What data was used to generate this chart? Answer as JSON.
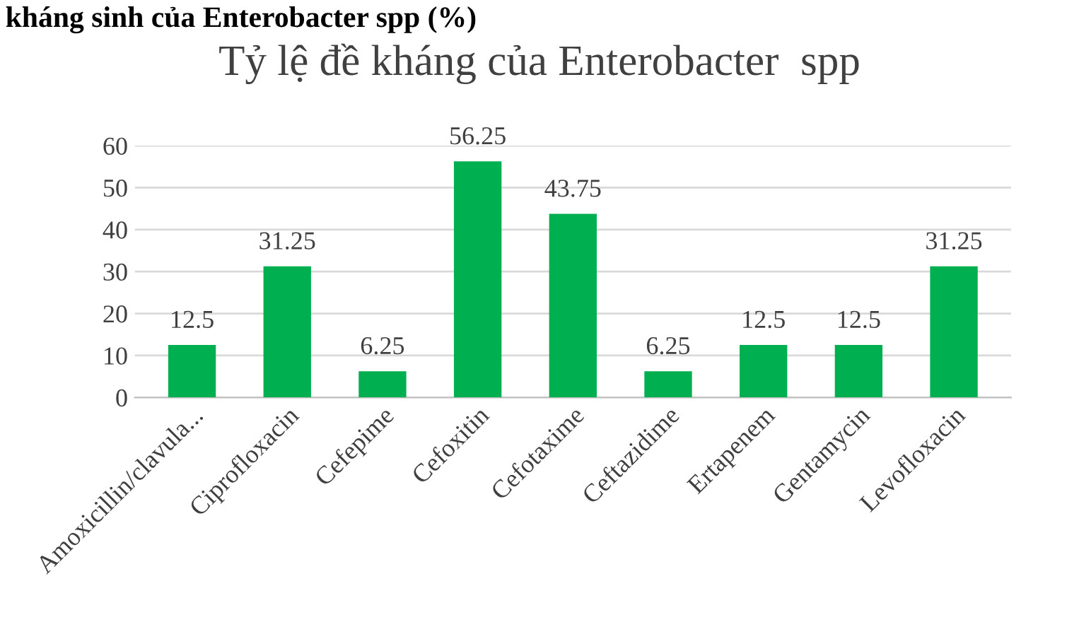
{
  "chart_data": {
    "type": "bar",
    "title": "Tỷ lệ đề kháng của Enterobacter  spp",
    "annotations": [
      "kháng sinh của Enterobacter spp (%)"
    ],
    "categories": [
      "Amoxicillin/clavula...",
      "Ciprofloxacin",
      "Cefepime",
      "Cefoxitin",
      "Cefotaxime",
      "Ceftazidime",
      "Ertapenem",
      "Gentamycin",
      "Levofloxacin"
    ],
    "values": [
      12.5,
      31.25,
      6.25,
      56.25,
      43.75,
      6.25,
      12.5,
      12.5,
      31.25
    ],
    "color": "#00b050",
    "ylim": [
      0,
      60
    ],
    "yticks": [
      0,
      10,
      20,
      30,
      40,
      50,
      60
    ],
    "grid": "y",
    "data_labels": true
  }
}
